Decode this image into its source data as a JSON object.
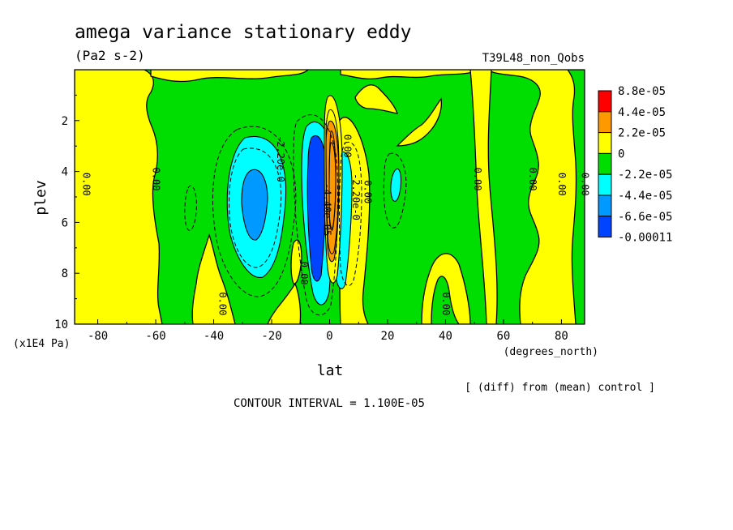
{
  "header": {
    "title": "amega variance stationary eddy",
    "units": "(Pa2 s-2)",
    "run_id": "T39L48_non_Qobs"
  },
  "footer": {
    "diff_note": "[ (diff) from (mean) control ]",
    "contour_interval": "CONTOUR INTERVAL = 1.100E-05"
  },
  "chart_data": {
    "type": "heatmap",
    "title": "amega variance stationary eddy",
    "subtitle": "(Pa2 s-2)",
    "xlabel": "lat",
    "xunits": "(degrees_north)",
    "ylabel": "plev",
    "yunits": "(x1E4 Pa)",
    "xlim": [
      -88,
      88
    ],
    "ylim": [
      10,
      0
    ],
    "x_ticks": [
      -80,
      -60,
      -40,
      -20,
      0,
      20,
      40,
      60,
      80
    ],
    "y_ticks": [
      2,
      4,
      6,
      8,
      10
    ],
    "legend": {
      "position": "right",
      "levels": [
        "8.8e-05",
        "4.4e-05",
        "2.2e-05",
        "0",
        "-2.2e-05",
        "-4.4e-05",
        "-6.6e-05",
        "-0.00011"
      ],
      "colors": [
        "#ff0000",
        "#ff9900",
        "#ffff00",
        "#00dd00",
        "#00ffff",
        "#0099ff",
        "#0044ff"
      ]
    },
    "contour_interval": 1.1e-05,
    "contour_labels": [
      {
        "text": "0.00",
        "lat": -85,
        "plev": 4.5
      },
      {
        "text": "0.00",
        "lat": -61,
        "plev": 4.3
      },
      {
        "text": "0.00",
        "lat": -38,
        "plev": 9.2
      },
      {
        "text": "-2.20e-0",
        "lat": -18,
        "plev": 3.5
      },
      {
        "text": "0.00",
        "lat": -10,
        "plev": 8.0
      },
      {
        "text": "-4.40e-05",
        "lat": -2,
        "plev": 5.5
      },
      {
        "text": "0.00",
        "lat": 5,
        "plev": 3.0
      },
      {
        "text": "-2.20e-0",
        "lat": 8,
        "plev": 5.0
      },
      {
        "text": "0.00",
        "lat": 12,
        "plev": 4.8
      },
      {
        "text": "0.00",
        "lat": 39,
        "plev": 9.2
      },
      {
        "text": "0.00",
        "lat": 50,
        "plev": 4.3
      },
      {
        "text": "0.00",
        "lat": 69,
        "plev": 4.3
      },
      {
        "text": "0.00",
        "lat": 79,
        "plev": 4.5
      },
      {
        "text": "0.00",
        "lat": 87,
        "plev": 4.5
      }
    ],
    "features": [
      {
        "name": "negative-core-south",
        "lat": -29,
        "plev": 5.0,
        "value": -4.4e-05
      },
      {
        "name": "negative-core-equator",
        "lat": -5,
        "plev": 5.5,
        "value": -6.6e-05
      },
      {
        "name": "positive-core-equator",
        "lat": 2,
        "plev": 4.5,
        "value": 8.8e-05
      },
      {
        "name": "negative-core-north",
        "lat": 23,
        "plev": 4.8,
        "value": -2.2e-05
      }
    ]
  }
}
